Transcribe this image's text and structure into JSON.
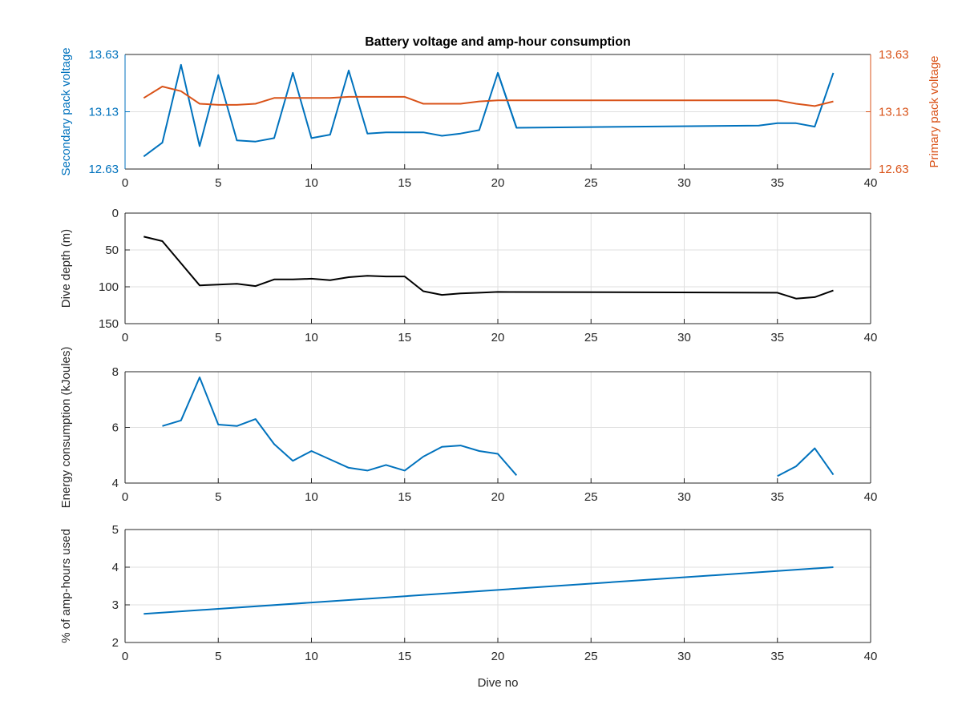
{
  "figure": {
    "title": "Battery voltage and amp-hour consumption"
  },
  "chart_data": [
    {
      "type": "line",
      "title": "Battery voltage and amp-hour consumption",
      "xlabel": "",
      "ylabel": "Secondary pack voltage",
      "ylabel_right": "Primary pack voltage",
      "xlim": [
        0,
        40
      ],
      "ylim": [
        12.63,
        13.63
      ],
      "ylim_right": [
        12.63,
        13.63
      ],
      "xticks": [
        "0",
        "5",
        "10",
        "15",
        "20",
        "25",
        "30",
        "35",
        "40"
      ],
      "yticks": [
        "12.63",
        "13.13",
        "13.63"
      ],
      "yticks_right": [
        "12.63",
        "13.13",
        "13.63"
      ],
      "grid": true,
      "series": [
        {
          "axis": "left",
          "color": "#0072bd",
          "x": [
            1,
            2,
            3,
            4,
            5,
            6,
            7,
            8,
            9,
            10,
            11,
            12,
            13,
            14,
            15,
            16,
            17,
            18,
            19,
            20,
            21,
            34,
            35,
            36,
            37,
            38
          ],
          "y": [
            12.74,
            12.86,
            13.54,
            12.83,
            13.45,
            12.88,
            12.87,
            12.9,
            13.47,
            12.9,
            12.93,
            13.49,
            12.94,
            12.95,
            12.95,
            12.95,
            12.92,
            12.94,
            12.97,
            13.47,
            12.99,
            13.01,
            13.03,
            13.03,
            13.0,
            13.47
          ],
          "segments": [
            [
              0,
              20
            ],
            [
              19,
              25
            ]
          ]
        },
        {
          "axis": "right",
          "color": "#d95319",
          "x": [
            1,
            2,
            3,
            4,
            5,
            6,
            7,
            8,
            9,
            10,
            11,
            12,
            13,
            14,
            15,
            16,
            17,
            18,
            19,
            20,
            21,
            34,
            35,
            36,
            37,
            38
          ],
          "y": [
            13.25,
            13.35,
            13.31,
            13.2,
            13.19,
            13.19,
            13.2,
            13.25,
            13.25,
            13.25,
            13.25,
            13.26,
            13.26,
            13.26,
            13.26,
            13.2,
            13.2,
            13.2,
            13.22,
            13.23,
            13.23,
            13.23,
            13.23,
            13.2,
            13.18,
            13.22
          ]
        }
      ]
    },
    {
      "type": "line",
      "xlabel": "",
      "ylabel": "Dive depth (m)",
      "xlim": [
        0,
        40
      ],
      "ylim": [
        0,
        150
      ],
      "y_reversed": true,
      "xticks": [
        "0",
        "5",
        "10",
        "15",
        "20",
        "25",
        "30",
        "35",
        "40"
      ],
      "yticks": [
        "0",
        "50",
        "100",
        "150"
      ],
      "grid": true,
      "series": [
        {
          "color": "#000000",
          "x": [
            1,
            2,
            3,
            4,
            5,
            6,
            7,
            8,
            9,
            10,
            11,
            12,
            13,
            14,
            15,
            16,
            17,
            18,
            19,
            20,
            35,
            36,
            37,
            38
          ],
          "y": [
            32,
            38,
            68,
            98,
            97,
            96,
            99,
            90,
            90,
            89,
            91,
            87,
            85,
            86,
            86,
            106,
            111,
            109,
            108,
            107,
            108,
            116,
            114,
            105
          ]
        }
      ]
    },
    {
      "type": "line",
      "xlabel": "",
      "ylabel": "Energy consumption (kJoules)",
      "xlim": [
        0,
        40
      ],
      "ylim": [
        4,
        8
      ],
      "xticks": [
        "0",
        "5",
        "10",
        "15",
        "20",
        "25",
        "30",
        "35",
        "40"
      ],
      "yticks": [
        "4",
        "6",
        "8"
      ],
      "grid": true,
      "series": [
        {
          "color": "#0072bd",
          "x": [
            2,
            3,
            4,
            5,
            6,
            7,
            8,
            9,
            10,
            11,
            12,
            13,
            14,
            15,
            16,
            17,
            18,
            19,
            20,
            21,
            35,
            36,
            37,
            38
          ],
          "y": [
            6.05,
            6.25,
            7.8,
            6.1,
            6.05,
            6.3,
            5.4,
            4.8,
            5.15,
            4.85,
            4.55,
            4.45,
            4.65,
            4.45,
            4.95,
            5.3,
            5.35,
            5.15,
            5.05,
            4.28,
            4.25,
            4.6,
            5.25,
            4.3
          ],
          "segments": [
            [
              0,
              19
            ],
            [
              20,
              23
            ]
          ]
        }
      ]
    },
    {
      "type": "line",
      "xlabel": "Dive no",
      "ylabel": "% of amp-hours used",
      "xlim": [
        0,
        40
      ],
      "ylim": [
        2,
        5
      ],
      "xticks": [
        "0",
        "5",
        "10",
        "15",
        "20",
        "25",
        "30",
        "35",
        "40"
      ],
      "yticks": [
        "2",
        "3",
        "4",
        "5"
      ],
      "grid": true,
      "series": [
        {
          "color": "#0072bd",
          "x": [
            1,
            38
          ],
          "y": [
            2.76,
            4.0
          ]
        }
      ]
    }
  ],
  "colors": {
    "blue": "#0072bd",
    "orange": "#d95319",
    "black": "#000000",
    "grid": "#dfdfdf",
    "axes": "#262626"
  }
}
